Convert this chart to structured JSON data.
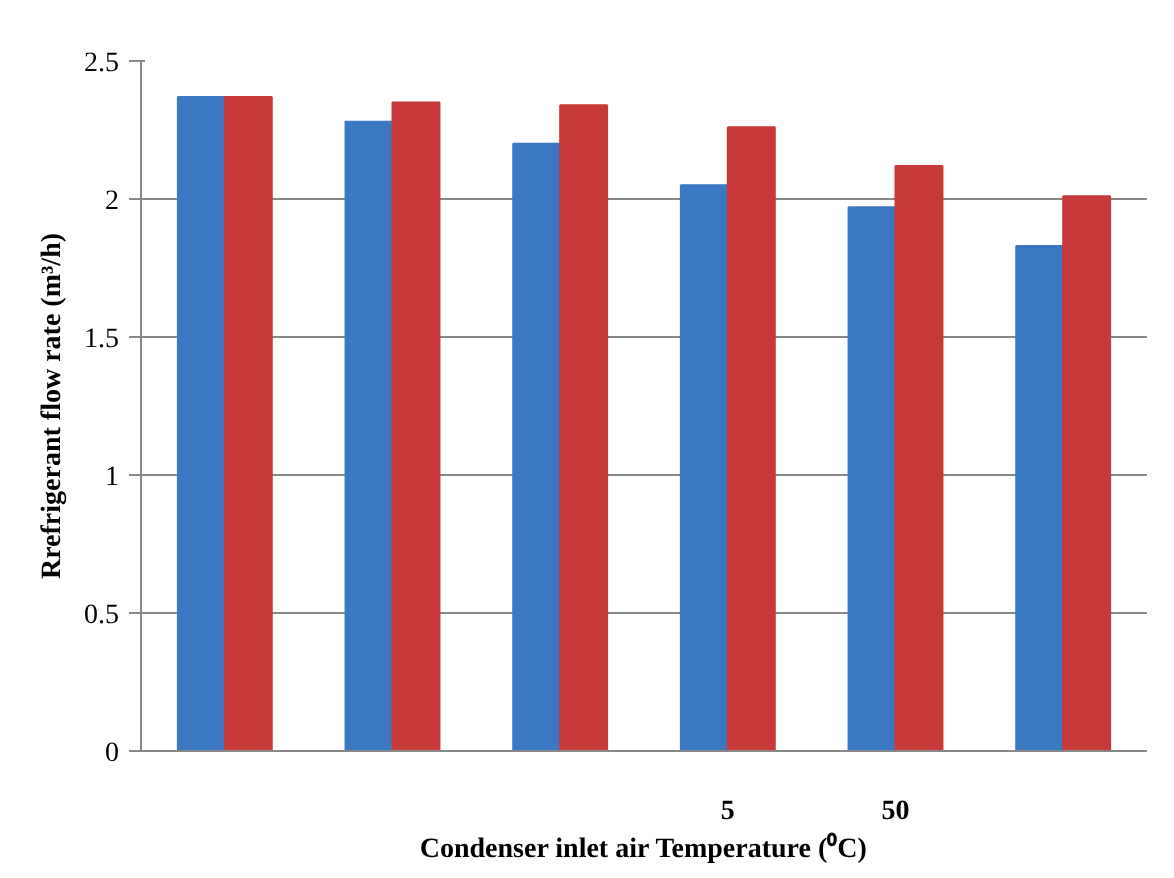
{
  "chart_data": {
    "type": "bar",
    "xlabel": "Condenser inlet air Temperature (⁰C)",
    "ylabel": "Rrefrigerant flow rate (m³/h)",
    "categories": [
      null,
      null,
      null,
      "5",
      "50",
      null
    ],
    "series": [
      {
        "color": "#3a78c4",
        "values": [
          2.37,
          2.28,
          2.2,
          2.05,
          1.97,
          1.83
        ]
      },
      {
        "color": "#c83a3a",
        "values": [
          2.37,
          2.35,
          2.34,
          2.26,
          2.12,
          2.01
        ]
      }
    ],
    "ylim": [
      0,
      2.5
    ],
    "yticks": [
      0,
      0.5,
      1,
      1.5,
      2,
      2.5
    ],
    "grid": "y"
  }
}
